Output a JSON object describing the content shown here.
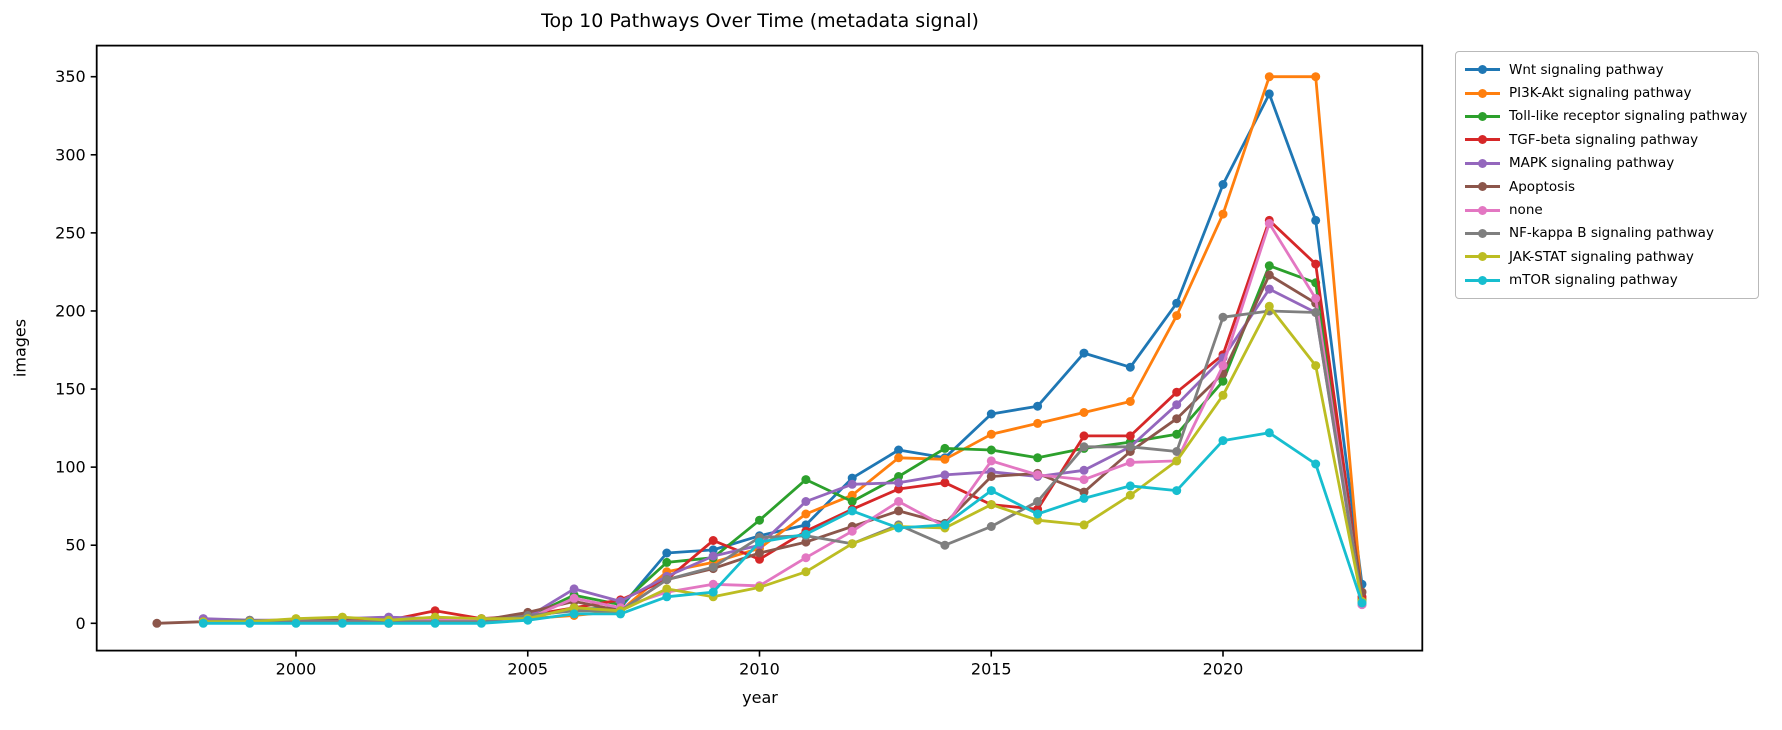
{
  "chart_data": {
    "type": "line",
    "title": "Top 10 Pathways Over Time (metadata signal)",
    "xlabel": "year",
    "ylabel": "images",
    "x": [
      1997,
      1998,
      1999,
      2000,
      2001,
      2002,
      2003,
      2004,
      2005,
      2006,
      2007,
      2008,
      2009,
      2010,
      2011,
      2012,
      2013,
      2014,
      2015,
      2016,
      2017,
      2018,
      2019,
      2020,
      2021,
      2022,
      2023
    ],
    "xticks": [
      2000,
      2005,
      2010,
      2015,
      2020
    ],
    "yticks": [
      0,
      50,
      100,
      150,
      200,
      250,
      300,
      350
    ],
    "xlim": [
      1995.7,
      2024.3
    ],
    "ylim": [
      -17.5,
      370
    ],
    "grid": false,
    "legend_position": "outside-right",
    "marker": "circle",
    "series": [
      {
        "name": "Wnt signaling pathway",
        "color": "#1f77b4",
        "values": [
          null,
          1,
          1,
          1,
          2,
          1,
          2,
          2,
          4,
          9,
          10,
          45,
          47,
          56,
          63,
          93,
          111,
          106,
          134,
          139,
          173,
          164,
          205,
          281,
          339,
          258,
          25
        ]
      },
      {
        "name": "PI3K-Akt signaling pathway",
        "color": "#ff7f0e",
        "values": [
          null,
          1,
          1,
          1,
          1,
          1,
          1,
          1,
          3,
          5,
          8,
          33,
          39,
          48,
          70,
          82,
          106,
          105,
          121,
          128,
          135,
          142,
          197,
          262,
          350,
          350,
          16
        ]
      },
      {
        "name": "Toll-like receptor signaling pathway",
        "color": "#2ca02c",
        "values": [
          null,
          1,
          1,
          2,
          3,
          1,
          2,
          2,
          4,
          18,
          12,
          39,
          42,
          66,
          92,
          78,
          94,
          112,
          111,
          106,
          112,
          116,
          121,
          155,
          229,
          218,
          15
        ]
      },
      {
        "name": "TGF-beta signaling pathway",
        "color": "#d62728",
        "values": [
          null,
          1,
          1,
          1,
          2,
          2,
          8,
          3,
          5,
          10,
          15,
          28,
          53,
          41,
          59,
          73,
          86,
          90,
          76,
          73,
          120,
          120,
          148,
          172,
          258,
          230,
          17
        ]
      },
      {
        "name": "MAPK signaling pathway",
        "color": "#9467bd",
        "values": [
          null,
          3,
          2,
          2,
          3,
          4,
          3,
          3,
          4,
          22,
          14,
          30,
          43,
          50,
          78,
          89,
          90,
          95,
          97,
          94,
          98,
          113,
          140,
          170,
          214,
          199,
          12
        ]
      },
      {
        "name": "Apoptosis",
        "color": "#8c564b",
        "values": [
          0,
          1,
          1,
          1,
          2,
          0,
          2,
          2,
          7,
          14,
          8,
          28,
          35,
          45,
          52,
          62,
          72,
          64,
          94,
          96,
          84,
          110,
          131,
          160,
          223,
          205,
          20
        ]
      },
      {
        "name": "none",
        "color": "#e377c2",
        "values": [
          null,
          1,
          1,
          1,
          1,
          1,
          2,
          2,
          3,
          16,
          10,
          20,
          25,
          24,
          42,
          59,
          78,
          62,
          104,
          95,
          92,
          103,
          104,
          165,
          256,
          208,
          12
        ]
      },
      {
        "name": "NF-kappa B signaling pathway",
        "color": "#7f7f7f",
        "values": [
          null,
          1,
          2,
          1,
          1,
          1,
          1,
          1,
          5,
          8,
          8,
          28,
          36,
          55,
          56,
          51,
          63,
          50,
          62,
          78,
          113,
          113,
          110,
          196,
          200,
          199,
          14
        ]
      },
      {
        "name": "JAK-STAT signaling pathway",
        "color": "#bcbd22",
        "values": [
          null,
          1,
          1,
          3,
          4,
          2,
          4,
          3,
          3,
          10,
          8,
          22,
          17,
          23,
          33,
          51,
          62,
          61,
          76,
          66,
          63,
          82,
          104,
          146,
          203,
          165,
          14
        ]
      },
      {
        "name": "mTOR signaling pathway",
        "color": "#17becf",
        "values": [
          null,
          0,
          0,
          0,
          0,
          0,
          0,
          0,
          2,
          6,
          6,
          17,
          20,
          52,
          57,
          72,
          61,
          63,
          85,
          70,
          80,
          88,
          85,
          117,
          122,
          102,
          13
        ]
      }
    ]
  }
}
